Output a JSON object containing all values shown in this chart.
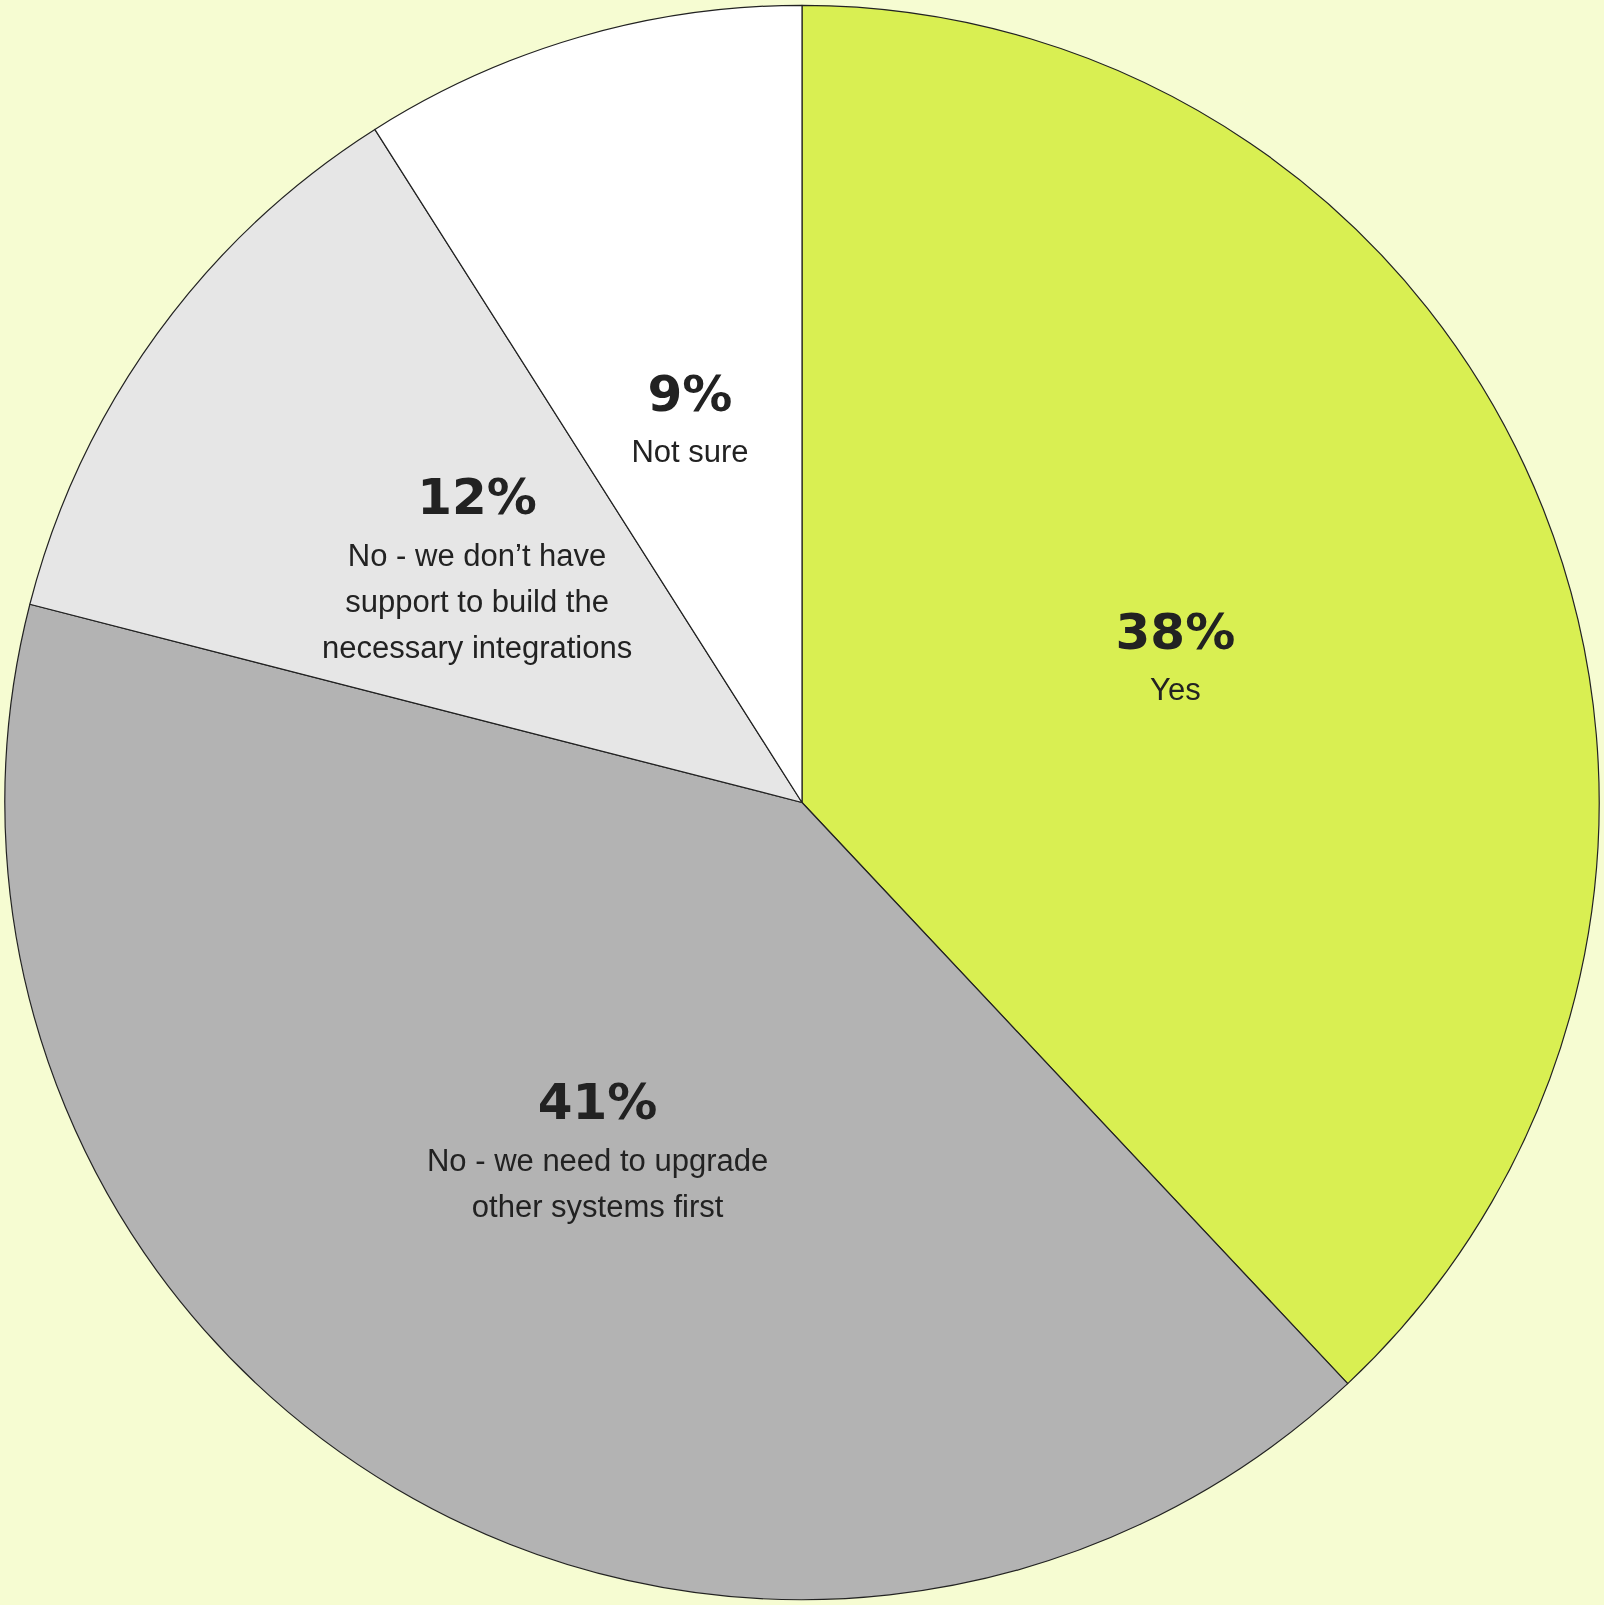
{
  "chart_data": {
    "type": "pie",
    "categories": [
      "Yes",
      "No - we need to upgrade other systems first",
      "No - we don’t have support to build the necessary integrations",
      "Not sure"
    ],
    "values": [
      38,
      41,
      12,
      9
    ],
    "colors": [
      "#d9ef52",
      "#b3b3b3",
      "#e6e6e6",
      "#ffffff"
    ],
    "value_labels": [
      "38%",
      "41%",
      "12%",
      "9%"
    ],
    "legend": false
  }
}
